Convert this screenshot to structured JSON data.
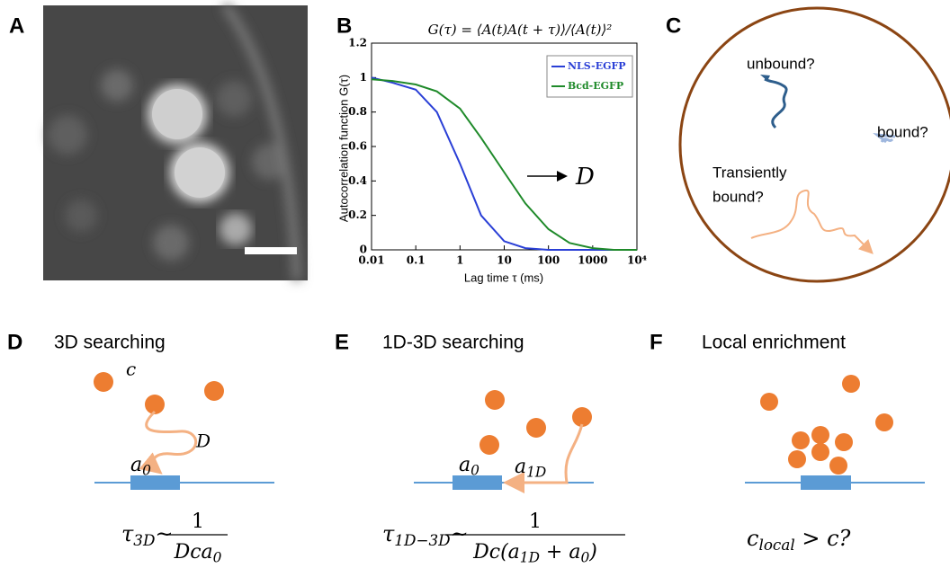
{
  "panel_labels": [
    "A",
    "B",
    "C",
    "D",
    "E",
    "F"
  ],
  "chart_data": {
    "type": "line",
    "title": "G(τ) = ⟨A(t)A(t + τ)⟩/⟨A(t)⟩²",
    "x_label": "Lag time τ (ms)",
    "y_label": "Autocorrelation function G(τ)",
    "x": [
      0.01,
      0.03,
      0.1,
      0.3,
      1,
      3,
      10,
      30,
      100,
      300,
      1000,
      3000,
      10000
    ],
    "series": [
      {
        "name": "NLS-EGFP",
        "color": "#2a3fd6",
        "values": [
          1,
          0.97,
          0.93,
          0.8,
          0.5,
          0.2,
          0.05,
          0.01,
          0,
          0,
          0,
          0,
          0
        ]
      },
      {
        "name": "Bcd-EGFP",
        "color": "#1f8a2a",
        "values": [
          0.99,
          0.98,
          0.96,
          0.92,
          0.82,
          0.65,
          0.45,
          0.27,
          0.12,
          0.04,
          0.01,
          0,
          0
        ]
      }
    ],
    "xlim": [
      0.01,
      10000
    ],
    "ylim": [
      0,
      1.2
    ],
    "log_x": true,
    "xticks": [
      0.01,
      0.1,
      1,
      10,
      100,
      1000,
      {
        "value": 10000,
        "label": "10⁴"
      }
    ],
    "yticks": [
      0,
      0.2,
      0.4,
      0.6,
      0.8,
      1,
      1.2
    ],
    "legend": "upper right",
    "annotation": "D"
  },
  "panel_c": {
    "unbound": "unbound?",
    "bound": "bound?",
    "transient": [
      "Transiently",
      "bound?"
    ]
  },
  "panel_d": {
    "title": "3D searching",
    "c": "c",
    "D": "D",
    "a": [
      "a",
      "0"
    ],
    "formula": {
      "lhs": [
        "τ",
        "3D",
        "~"
      ],
      "num": "1",
      "den": [
        "Dca",
        "0"
      ]
    }
  },
  "panel_e": {
    "title": "1D-3D searching",
    "a0": [
      "a",
      "0"
    ],
    "a1": [
      "a",
      "1D"
    ],
    "formula": {
      "lhs": [
        "τ",
        "1D−3D",
        "~"
      ],
      "num": "1",
      "den": [
        "Dc(a",
        "1D",
        " + a",
        "0",
        ")"
      ]
    }
  },
  "panel_f": {
    "title": "Local enrichment",
    "formula": [
      "c",
      "local",
      " > c?"
    ]
  }
}
